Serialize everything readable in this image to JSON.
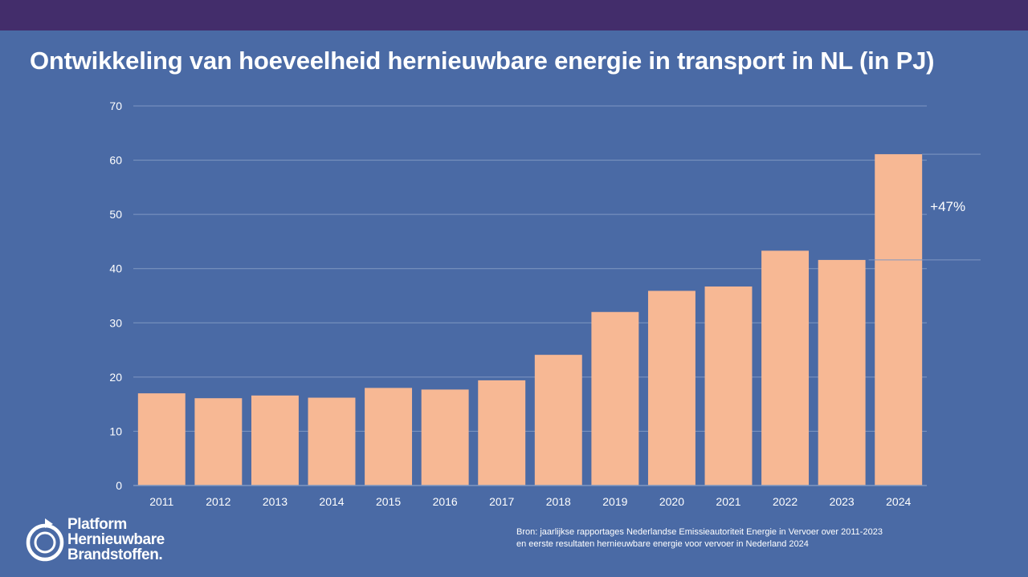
{
  "title": "Ontwikkeling van hoeveelheid hernieuwbare energie in transport in NL (in PJ)",
  "colors": {
    "background": "#4a6aa5",
    "top_band": "#432d6b",
    "bar": "#f7b894",
    "gridline": "#7f97c2",
    "text": "#ffffff"
  },
  "chart_data": {
    "type": "bar",
    "title": "Ontwikkeling van hoeveelheid hernieuwbare energie in transport in NL (in PJ)",
    "xlabel": "",
    "ylabel": "",
    "categories": [
      "2011",
      "2012",
      "2013",
      "2014",
      "2015",
      "2016",
      "2017",
      "2018",
      "2019",
      "2020",
      "2021",
      "2022",
      "2023",
      "2024"
    ],
    "values": [
      17.0,
      16.1,
      16.6,
      16.2,
      18.0,
      17.7,
      19.4,
      24.1,
      32.0,
      35.9,
      36.7,
      43.3,
      41.6,
      61.1
    ],
    "ylim": [
      0,
      70
    ],
    "yticks": [
      "0",
      "10",
      "20",
      "30",
      "40",
      "50",
      "60",
      "70"
    ],
    "grid": true,
    "annotation": {
      "text": "+47%",
      "from_category": "2023",
      "to_category": "2024"
    }
  },
  "logo": {
    "lines": [
      "Platform",
      "Hernieuwbare",
      "Brandstoffen."
    ],
    "icon": "circular-arrow-logo-icon"
  },
  "source": {
    "lines": [
      "Bron: jaarlijkse rapportages Nederlandse Emissieautoriteit Energie in Vervoer over 2011-2023",
      "en eerste resultaten hernieuwbare energie voor vervoer in Nederland 2024"
    ]
  }
}
